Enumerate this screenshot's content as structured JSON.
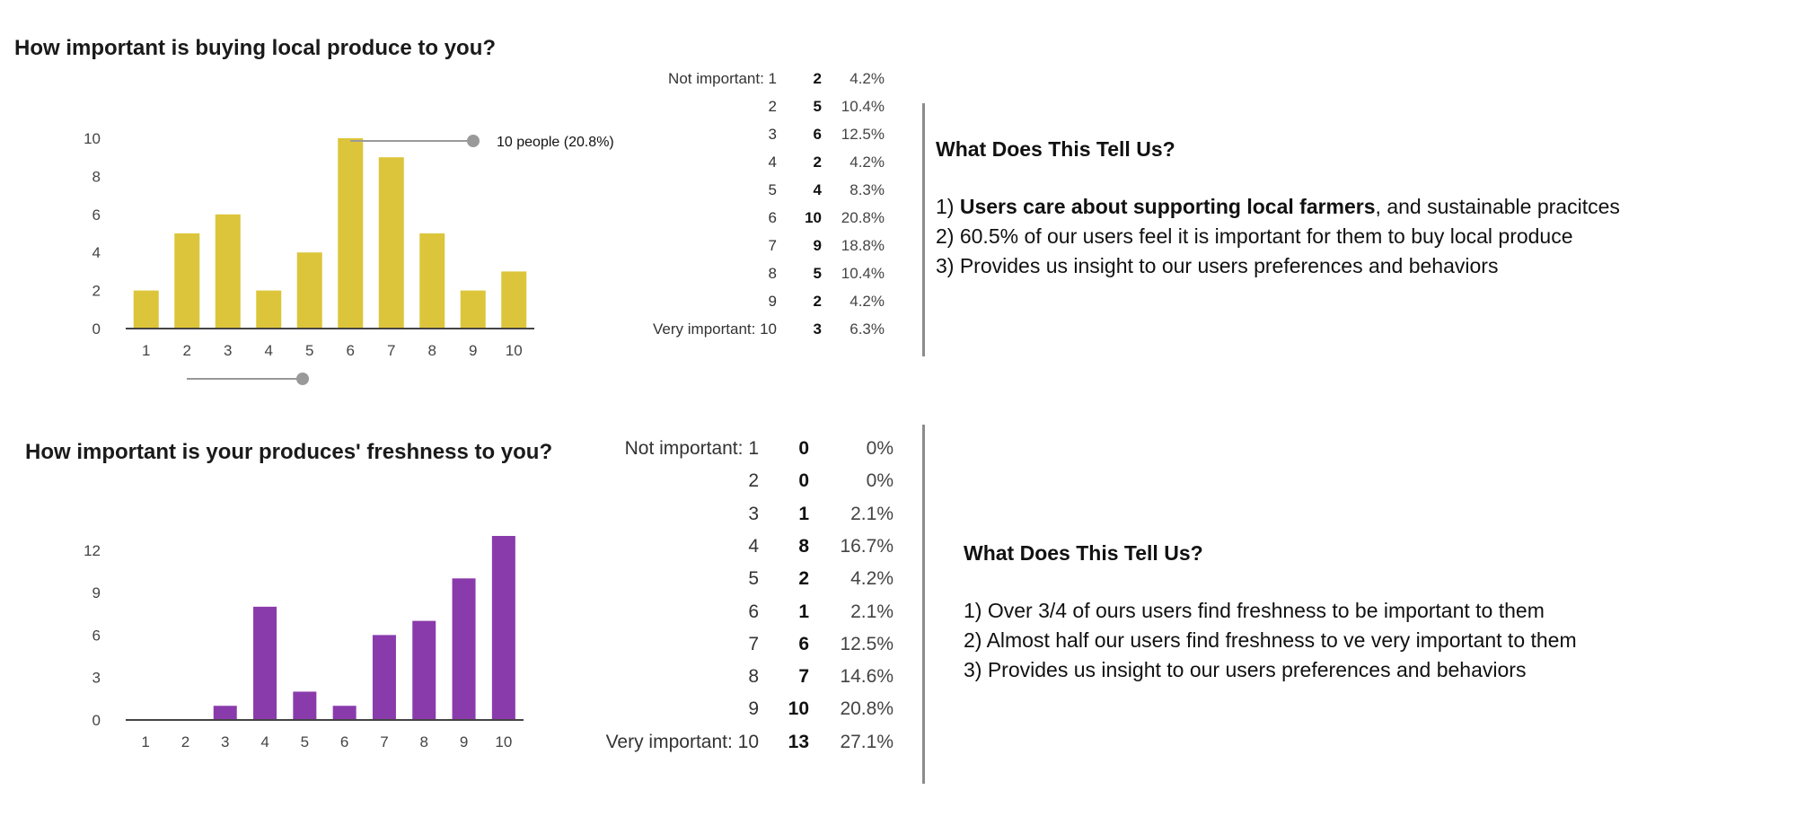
{
  "q1": {
    "title": "How important is buying local produce to you?",
    "callout": "10 people (20.8%)",
    "rows": [
      {
        "label": "Not important: 1",
        "count": "2",
        "pct": "4.2%"
      },
      {
        "label": "2",
        "count": "5",
        "pct": "10.4%"
      },
      {
        "label": "3",
        "count": "6",
        "pct": "12.5%"
      },
      {
        "label": "4",
        "count": "2",
        "pct": "4.2%"
      },
      {
        "label": "5",
        "count": "4",
        "pct": "8.3%"
      },
      {
        "label": "6",
        "count": "10",
        "pct": "20.8%"
      },
      {
        "label": "7",
        "count": "9",
        "pct": "18.8%"
      },
      {
        "label": "8",
        "count": "5",
        "pct": "10.4%"
      },
      {
        "label": "9",
        "count": "2",
        "pct": "4.2%"
      },
      {
        "label": "Very important: 10",
        "count": "3",
        "pct": "6.3%"
      }
    ],
    "insight": {
      "title": "What Does This Tell Us?",
      "line1_prefix": "1) ",
      "line1_bold": "Users care about supporting local farmers",
      "line1_rest": ", and sustainable pracitces",
      "line2": "2)  60.5% of our users feel it is important for them to buy local produce",
      "line3": "3)  Provides us insight to our users preferences and behaviors"
    }
  },
  "q2": {
    "title": "How important is your produces' freshness to you?",
    "rows": [
      {
        "label": "Not important: 1",
        "count": "0",
        "pct": "0%"
      },
      {
        "label": "2",
        "count": "0",
        "pct": "0%"
      },
      {
        "label": "3",
        "count": "1",
        "pct": "2.1%"
      },
      {
        "label": "4",
        "count": "8",
        "pct": "16.7%"
      },
      {
        "label": "5",
        "count": "2",
        "pct": "4.2%"
      },
      {
        "label": "6",
        "count": "1",
        "pct": "2.1%"
      },
      {
        "label": "7",
        "count": "6",
        "pct": "12.5%"
      },
      {
        "label": "8",
        "count": "7",
        "pct": "14.6%"
      },
      {
        "label": "9",
        "count": "10",
        "pct": "20.8%"
      },
      {
        "label": "Very important: 10",
        "count": "13",
        "pct": "27.1%"
      }
    ],
    "insight": {
      "title": "What Does This Tell Us?",
      "line1": "1) Over 3/4 of ours users find freshness to be important to them",
      "line2": "2)  Almost half our users find freshness to ve very important to them",
      "line3": "3) Provides us insight to our users preferences and behaviors"
    }
  },
  "colors": {
    "q1_bar": "#dcc53a",
    "q2_bar": "#8a3bab",
    "axis": "#444444",
    "callout_line": "#999999",
    "divider": "#8c8c8c"
  },
  "chart_data": [
    {
      "type": "bar",
      "title": "How important is buying local produce to you?",
      "categories": [
        "1",
        "2",
        "3",
        "4",
        "5",
        "6",
        "7",
        "8",
        "9",
        "10"
      ],
      "values": [
        2,
        5,
        6,
        2,
        4,
        10,
        9,
        5,
        2,
        3
      ],
      "yticks": [
        0,
        2,
        4,
        6,
        8,
        10
      ],
      "ylim": [
        0,
        10
      ],
      "xlabel": "",
      "ylabel": "",
      "grid": false,
      "annotation": {
        "category": "6",
        "text": "10 people (20.8%)"
      }
    },
    {
      "type": "bar",
      "title": "How important is your produces' freshness to you?",
      "categories": [
        "1",
        "2",
        "3",
        "4",
        "5",
        "6",
        "7",
        "8",
        "9",
        "10"
      ],
      "values": [
        0,
        0,
        1,
        8,
        2,
        1,
        6,
        7,
        10,
        13
      ],
      "yticks": [
        0,
        3,
        6,
        9,
        12
      ],
      "ylim": [
        0,
        13
      ],
      "xlabel": "",
      "ylabel": "",
      "grid": false
    }
  ]
}
